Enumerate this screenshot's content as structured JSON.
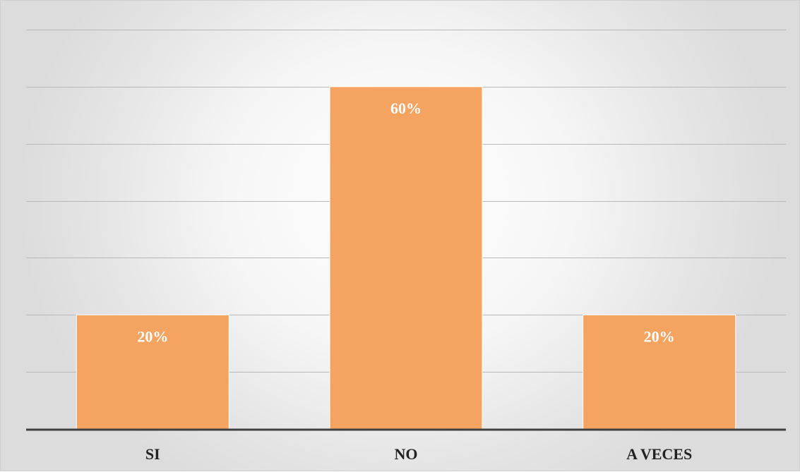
{
  "chart_data": {
    "type": "bar",
    "categories": [
      "SI",
      "NO",
      "A VECES"
    ],
    "values": [
      20,
      60,
      20
    ],
    "data_labels": [
      "20%",
      "60%",
      "20%"
    ],
    "ylim": [
      0,
      70
    ],
    "y_gridline_step": 10,
    "grid": true,
    "bar_color": "#f4a460",
    "bar_edge_color": "#ffffff",
    "axis_color": "#404040",
    "grid_color": "#b8b8b8",
    "title": "",
    "xlabel": "",
    "ylabel": ""
  }
}
